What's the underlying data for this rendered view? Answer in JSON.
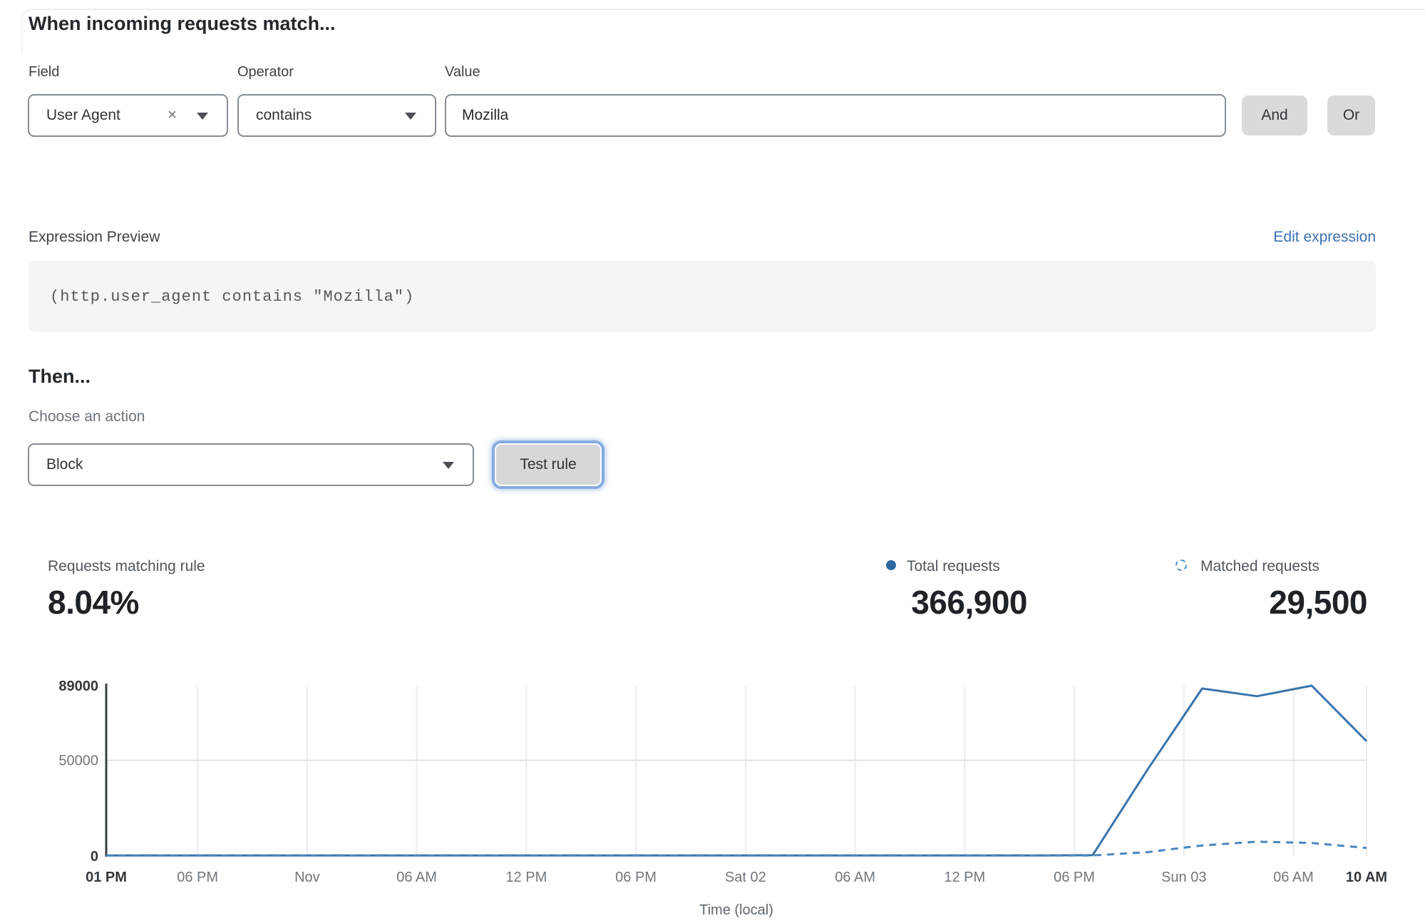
{
  "header": {
    "title": "When incoming requests match..."
  },
  "rule_builder": {
    "field": {
      "label": "Field",
      "value": "User Agent",
      "clear_icon": "×"
    },
    "operator": {
      "label": "Operator",
      "value": "contains"
    },
    "value": {
      "label": "Value",
      "value": "Mozilla"
    },
    "and_label": "And",
    "or_label": "Or"
  },
  "expression": {
    "label": "Expression Preview",
    "edit_link": "Edit expression",
    "code": "(http.user_agent contains \"Mozilla\")"
  },
  "action": {
    "heading": "Then...",
    "label": "Choose an action",
    "selected": "Block",
    "test_button": "Test rule"
  },
  "stats": {
    "matching": {
      "label": "Requests matching rule",
      "value": "8.04%"
    },
    "total": {
      "label": "Total requests",
      "value": "366,900"
    },
    "matched": {
      "label": "Matched requests",
      "value": "29,500"
    }
  },
  "colors": {
    "accent_blue": "#3d70b2",
    "chart_solid": "#3a74ab",
    "chart_dashed": "#4d86bf",
    "legend_dot": "#2c6aa0"
  },
  "chart_data": {
    "type": "line",
    "title": "",
    "xlabel": "Time (local)",
    "ylabel": "",
    "ylim": [
      0,
      89000
    ],
    "xlim_hours": [
      0,
      69
    ],
    "grid": true,
    "legend_position": "top-right",
    "x_hours": [
      0,
      3,
      6,
      9,
      12,
      15,
      18,
      21,
      24,
      27,
      30,
      33,
      36,
      39,
      42,
      45,
      48,
      51,
      54,
      57,
      60,
      63,
      66,
      69
    ],
    "series": [
      {
        "name": "Total requests",
        "style": "solid",
        "color": "#3a74ab",
        "values": [
          300,
          300,
          300,
          300,
          300,
          300,
          300,
          300,
          300,
          300,
          300,
          300,
          300,
          300,
          300,
          300,
          300,
          300,
          400,
          45000,
          87500,
          83500,
          89000,
          60000
        ]
      },
      {
        "name": "Matched requests",
        "style": "dashed",
        "color": "#4d86bf",
        "values": [
          250,
          250,
          250,
          250,
          250,
          250,
          250,
          250,
          250,
          250,
          250,
          250,
          250,
          250,
          250,
          250,
          250,
          250,
          300,
          2000,
          5500,
          7500,
          6800,
          4200
        ]
      }
    ],
    "xticks": [
      {
        "h": 0,
        "label": "01 PM",
        "bold": true
      },
      {
        "h": 5,
        "label": "06 PM",
        "bold": false
      },
      {
        "h": 11,
        "label": "Nov",
        "bold": false
      },
      {
        "h": 17,
        "label": "06 AM",
        "bold": false
      },
      {
        "h": 23,
        "label": "12 PM",
        "bold": false
      },
      {
        "h": 29,
        "label": "06 PM",
        "bold": false
      },
      {
        "h": 35,
        "label": "Sat 02",
        "bold": false
      },
      {
        "h": 41,
        "label": "06 AM",
        "bold": false
      },
      {
        "h": 47,
        "label": "12 PM",
        "bold": false
      },
      {
        "h": 53,
        "label": "06 PM",
        "bold": false
      },
      {
        "h": 59,
        "label": "Sun 03",
        "bold": false
      },
      {
        "h": 65,
        "label": "06 AM",
        "bold": false
      },
      {
        "h": 69,
        "label": "10 AM",
        "bold": true
      }
    ],
    "yticks": [
      {
        "v": 0,
        "label": "0",
        "bold": true,
        "grid": false
      },
      {
        "v": 50000,
        "label": "50000",
        "bold": false,
        "grid": true
      },
      {
        "v": 89000,
        "label": "89000",
        "bold": true,
        "grid": false
      }
    ]
  }
}
